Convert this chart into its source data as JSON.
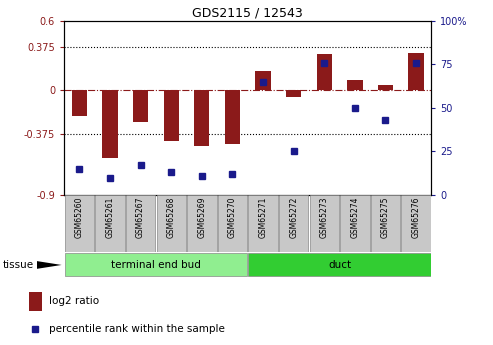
{
  "title": "GDS2115 / 12543",
  "samples": [
    "GSM65260",
    "GSM65261",
    "GSM65267",
    "GSM65268",
    "GSM65269",
    "GSM65270",
    "GSM65271",
    "GSM65272",
    "GSM65273",
    "GSM65274",
    "GSM65275",
    "GSM65276"
  ],
  "log2_ratio": [
    -0.22,
    -0.58,
    -0.27,
    -0.44,
    -0.48,
    -0.46,
    0.17,
    -0.06,
    0.31,
    0.09,
    0.05,
    0.32
  ],
  "percentile_rank": [
    15,
    10,
    17,
    13,
    11,
    12,
    65,
    25,
    76,
    50,
    43,
    76
  ],
  "groups": [
    {
      "label": "terminal end bud",
      "start": 0,
      "end": 6,
      "color": "#90EE90"
    },
    {
      "label": "duct",
      "start": 6,
      "end": 12,
      "color": "#32CD32"
    }
  ],
  "tissue_label": "tissue",
  "ylim_left": [
    -0.9,
    0.6
  ],
  "ylim_right": [
    0,
    100
  ],
  "yticks_left": [
    -0.9,
    -0.375,
    0,
    0.375,
    0.6
  ],
  "yticks_right": [
    0,
    25,
    50,
    75,
    100
  ],
  "ytick_labels_left": [
    "-0.9",
    "-0.375",
    "0",
    "0.375",
    "0.6"
  ],
  "ytick_labels_right": [
    "0",
    "25",
    "50",
    "75",
    "100%"
  ],
  "hlines": [
    0.375,
    -0.375
  ],
  "bar_color": "#8B1A1A",
  "dot_color": "#1A1A8B",
  "zero_line_color": "#8B1A1A",
  "legend_bar_label": "log2 ratio",
  "legend_dot_label": "percentile rank within the sample",
  "bar_width": 0.5,
  "group_colors": [
    "#90EE90",
    "#32CD32"
  ]
}
